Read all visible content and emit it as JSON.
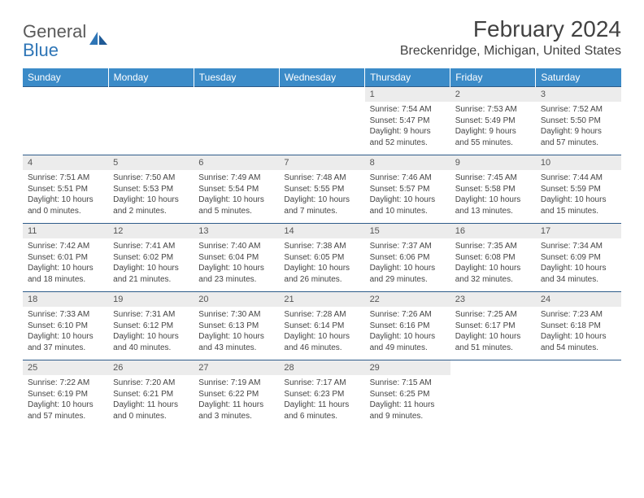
{
  "logo": {
    "text_gray": "General",
    "text_blue": "Blue"
  },
  "title": "February 2024",
  "location": "Breckenridge, Michigan, United States",
  "day_names": [
    "Sunday",
    "Monday",
    "Tuesday",
    "Wednesday",
    "Thursday",
    "Friday",
    "Saturday"
  ],
  "colors": {
    "header_bg": "#3b8bc8",
    "header_text": "#ffffff",
    "daynum_bg": "#ececec",
    "rule": "#2e5c8a",
    "logo_gray": "#5a5a5a",
    "logo_blue": "#2e75b6"
  },
  "weeks": [
    [
      {
        "empty": true
      },
      {
        "empty": true
      },
      {
        "empty": true
      },
      {
        "empty": true
      },
      {
        "n": "1",
        "sunrise": "7:54 AM",
        "sunset": "5:47 PM",
        "daylight": "9 hours and 52 minutes."
      },
      {
        "n": "2",
        "sunrise": "7:53 AM",
        "sunset": "5:49 PM",
        "daylight": "9 hours and 55 minutes."
      },
      {
        "n": "3",
        "sunrise": "7:52 AM",
        "sunset": "5:50 PM",
        "daylight": "9 hours and 57 minutes."
      }
    ],
    [
      {
        "n": "4",
        "sunrise": "7:51 AM",
        "sunset": "5:51 PM",
        "daylight": "10 hours and 0 minutes."
      },
      {
        "n": "5",
        "sunrise": "7:50 AM",
        "sunset": "5:53 PM",
        "daylight": "10 hours and 2 minutes."
      },
      {
        "n": "6",
        "sunrise": "7:49 AM",
        "sunset": "5:54 PM",
        "daylight": "10 hours and 5 minutes."
      },
      {
        "n": "7",
        "sunrise": "7:48 AM",
        "sunset": "5:55 PM",
        "daylight": "10 hours and 7 minutes."
      },
      {
        "n": "8",
        "sunrise": "7:46 AM",
        "sunset": "5:57 PM",
        "daylight": "10 hours and 10 minutes."
      },
      {
        "n": "9",
        "sunrise": "7:45 AM",
        "sunset": "5:58 PM",
        "daylight": "10 hours and 13 minutes."
      },
      {
        "n": "10",
        "sunrise": "7:44 AM",
        "sunset": "5:59 PM",
        "daylight": "10 hours and 15 minutes."
      }
    ],
    [
      {
        "n": "11",
        "sunrise": "7:42 AM",
        "sunset": "6:01 PM",
        "daylight": "10 hours and 18 minutes."
      },
      {
        "n": "12",
        "sunrise": "7:41 AM",
        "sunset": "6:02 PM",
        "daylight": "10 hours and 21 minutes."
      },
      {
        "n": "13",
        "sunrise": "7:40 AM",
        "sunset": "6:04 PM",
        "daylight": "10 hours and 23 minutes."
      },
      {
        "n": "14",
        "sunrise": "7:38 AM",
        "sunset": "6:05 PM",
        "daylight": "10 hours and 26 minutes."
      },
      {
        "n": "15",
        "sunrise": "7:37 AM",
        "sunset": "6:06 PM",
        "daylight": "10 hours and 29 minutes."
      },
      {
        "n": "16",
        "sunrise": "7:35 AM",
        "sunset": "6:08 PM",
        "daylight": "10 hours and 32 minutes."
      },
      {
        "n": "17",
        "sunrise": "7:34 AM",
        "sunset": "6:09 PM",
        "daylight": "10 hours and 34 minutes."
      }
    ],
    [
      {
        "n": "18",
        "sunrise": "7:33 AM",
        "sunset": "6:10 PM",
        "daylight": "10 hours and 37 minutes."
      },
      {
        "n": "19",
        "sunrise": "7:31 AM",
        "sunset": "6:12 PM",
        "daylight": "10 hours and 40 minutes."
      },
      {
        "n": "20",
        "sunrise": "7:30 AM",
        "sunset": "6:13 PM",
        "daylight": "10 hours and 43 minutes."
      },
      {
        "n": "21",
        "sunrise": "7:28 AM",
        "sunset": "6:14 PM",
        "daylight": "10 hours and 46 minutes."
      },
      {
        "n": "22",
        "sunrise": "7:26 AM",
        "sunset": "6:16 PM",
        "daylight": "10 hours and 49 minutes."
      },
      {
        "n": "23",
        "sunrise": "7:25 AM",
        "sunset": "6:17 PM",
        "daylight": "10 hours and 51 minutes."
      },
      {
        "n": "24",
        "sunrise": "7:23 AM",
        "sunset": "6:18 PM",
        "daylight": "10 hours and 54 minutes."
      }
    ],
    [
      {
        "n": "25",
        "sunrise": "7:22 AM",
        "sunset": "6:19 PM",
        "daylight": "10 hours and 57 minutes."
      },
      {
        "n": "26",
        "sunrise": "7:20 AM",
        "sunset": "6:21 PM",
        "daylight": "11 hours and 0 minutes."
      },
      {
        "n": "27",
        "sunrise": "7:19 AM",
        "sunset": "6:22 PM",
        "daylight": "11 hours and 3 minutes."
      },
      {
        "n": "28",
        "sunrise": "7:17 AM",
        "sunset": "6:23 PM",
        "daylight": "11 hours and 6 minutes."
      },
      {
        "n": "29",
        "sunrise": "7:15 AM",
        "sunset": "6:25 PM",
        "daylight": "11 hours and 9 minutes."
      },
      {
        "empty": true
      },
      {
        "empty": true
      }
    ]
  ],
  "labels": {
    "sunrise": "Sunrise: ",
    "sunset": "Sunset: ",
    "daylight": "Daylight: "
  }
}
